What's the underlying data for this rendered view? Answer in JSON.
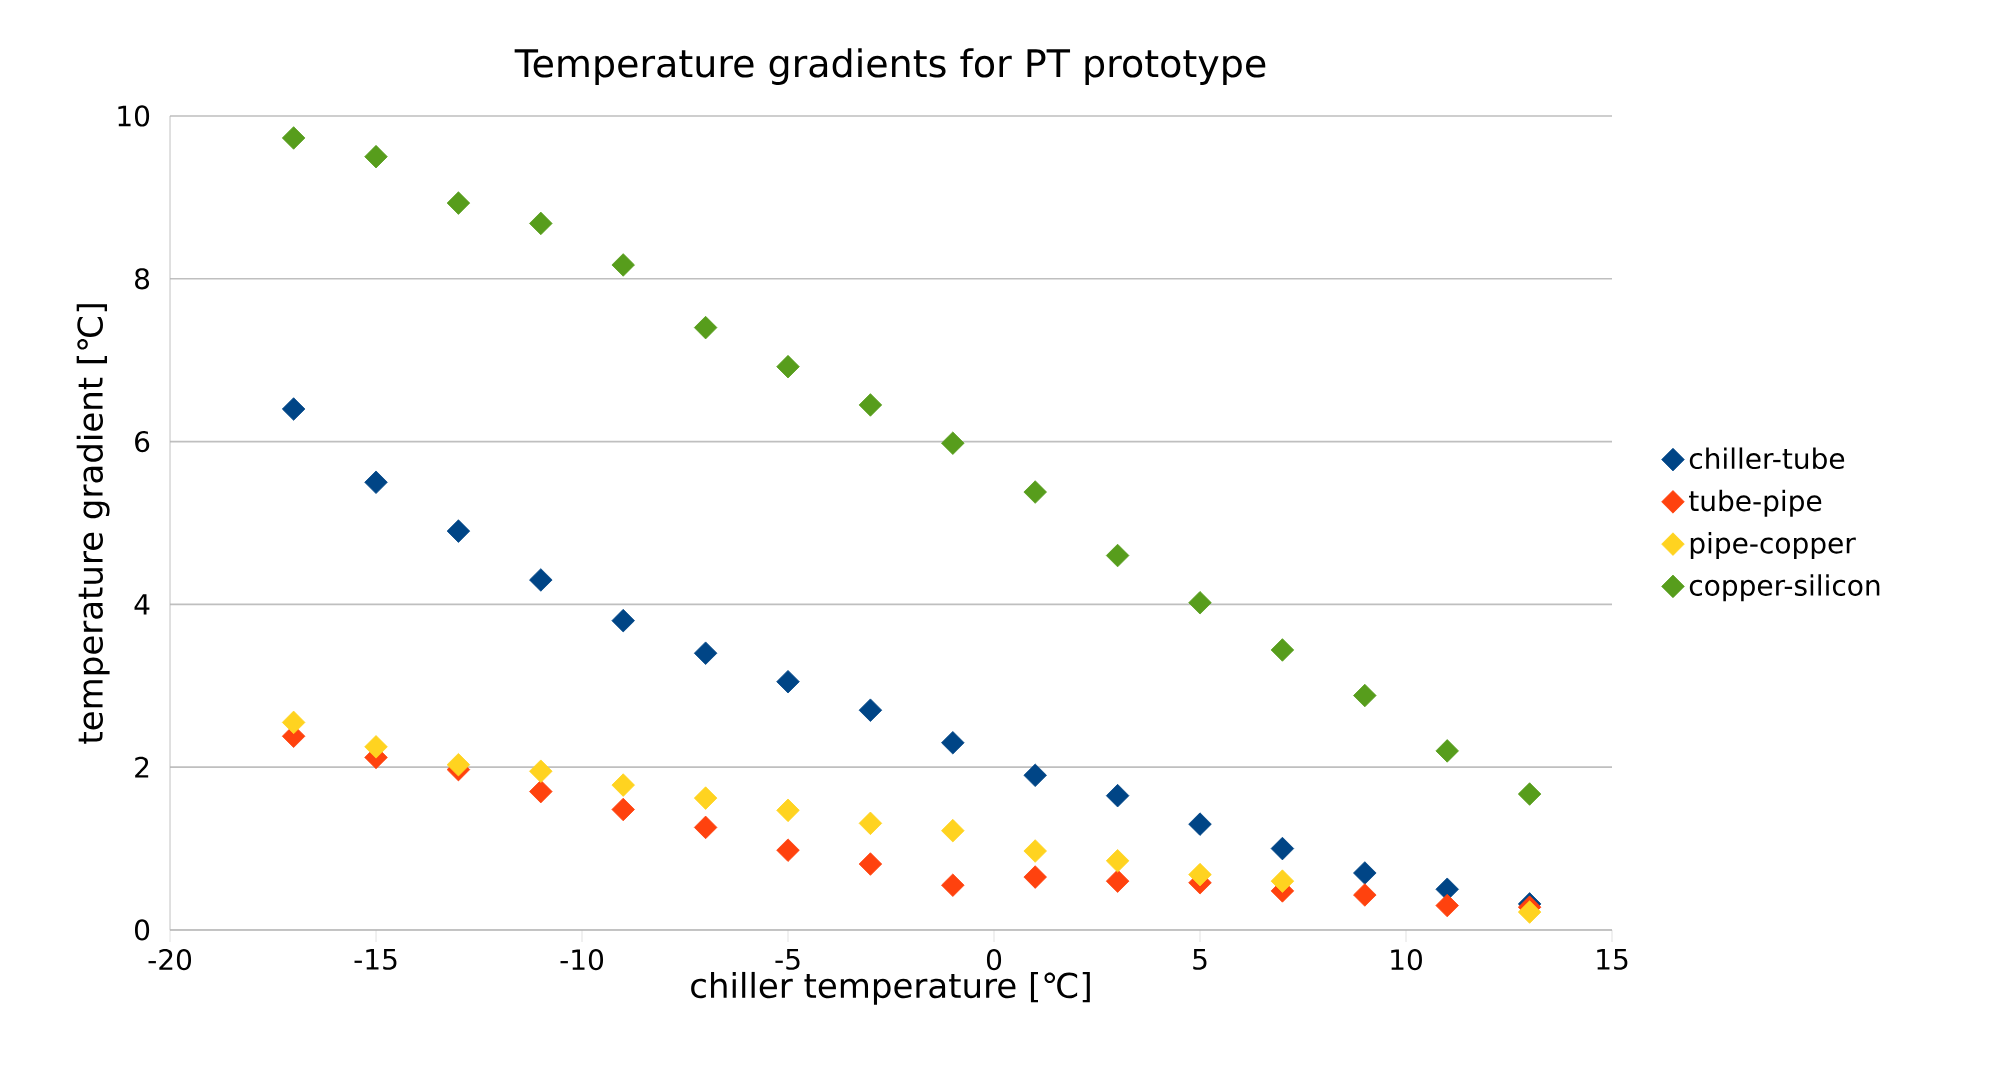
{
  "chart_data": {
    "type": "scatter",
    "title": "Temperature gradients for PT prototype",
    "xlabel": "chiller temperature [℃]",
    "ylabel": "temperature gradient [℃]",
    "x": [
      -17,
      -15,
      -13,
      -11,
      -9,
      -7,
      -5,
      -3,
      -1,
      1,
      3,
      5,
      7,
      9,
      11,
      13
    ],
    "series": [
      {
        "name": "chiller-tube",
        "color": "#004586",
        "values": [
          6.4,
          5.5,
          4.9,
          4.3,
          3.8,
          3.4,
          3.05,
          2.7,
          2.3,
          1.9,
          1.65,
          1.3,
          1.0,
          0.7,
          0.5,
          0.32
        ]
      },
      {
        "name": "tube-pipe",
        "color": "#ff420e",
        "values": [
          2.38,
          2.12,
          1.97,
          1.7,
          1.48,
          1.26,
          0.98,
          0.81,
          0.55,
          0.65,
          0.6,
          0.58,
          0.48,
          0.43,
          0.3,
          0.28
        ]
      },
      {
        "name": "pipe-copper",
        "color": "#ffd320",
        "values": [
          2.55,
          2.25,
          2.03,
          1.95,
          1.78,
          1.62,
          1.47,
          1.31,
          1.22,
          0.97,
          0.85,
          0.68,
          0.6,
          null,
          null,
          0.22
        ]
      },
      {
        "name": "copper-silicon",
        "color": "#579d1c",
        "values": [
          9.73,
          9.5,
          8.93,
          8.68,
          8.17,
          7.4,
          6.92,
          6.45,
          5.98,
          5.38,
          4.6,
          4.02,
          3.44,
          2.88,
          2.2,
          1.67
        ]
      }
    ],
    "xlim": [
      -20,
      15
    ],
    "xticks": [
      -20,
      -15,
      -10,
      -5,
      0,
      5,
      10,
      15
    ],
    "ylim": [
      0,
      10
    ],
    "yticks": [
      0,
      2,
      4,
      6,
      8,
      10
    ],
    "grid": "y",
    "legend": "right",
    "marker": "diamond"
  }
}
